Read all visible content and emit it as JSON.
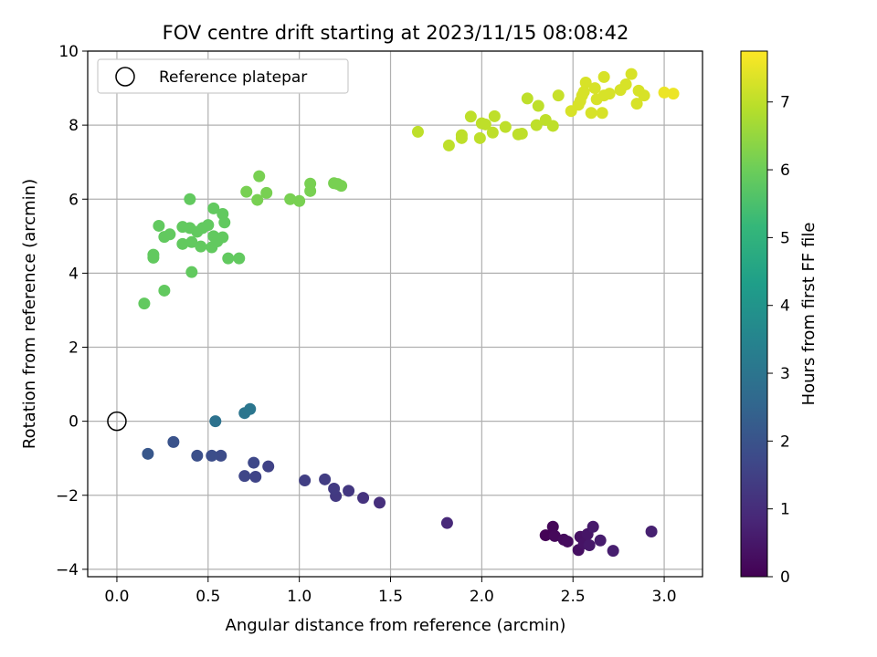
{
  "chart_data": {
    "type": "scatter",
    "title": "FOV centre drift starting at 2023/11/15 08:08:42",
    "xlabel": "Angular distance from reference (arcmin)",
    "ylabel": "Rotation from reference (arcmin)",
    "xlim": [
      -0.16,
      3.21
    ],
    "ylim": [
      -4.2,
      10
    ],
    "xticks": [
      "0.0",
      "0.5",
      "1.0",
      "1.5",
      "2.0",
      "2.5",
      "3.0"
    ],
    "xtick_values": [
      0,
      0.5,
      1,
      1.5,
      2,
      2.5,
      3
    ],
    "yticks": [
      "−4",
      "−2",
      "0",
      "2",
      "4",
      "6",
      "8",
      "10"
    ],
    "ytick_values": [
      -4,
      -2,
      0,
      2,
      4,
      6,
      8,
      10
    ],
    "grid": true,
    "legend": {
      "placement": "top-left",
      "label": "Reference platepar"
    },
    "reference_point": {
      "x": 0,
      "y": 0
    },
    "colorbar": {
      "label": "Hours from first FF file",
      "range": [
        0,
        7.75
      ],
      "ticks": [
        "0",
        "1",
        "2",
        "3",
        "4",
        "5",
        "6",
        "7"
      ],
      "tick_values": [
        0,
        1,
        2,
        3,
        4,
        5,
        6,
        7
      ],
      "colormap": "viridis",
      "colors": [
        "#440154",
        "#482878",
        "#3e4989",
        "#31688e",
        "#26828e",
        "#1f9e89",
        "#35b779",
        "#6ece58",
        "#b5de2b",
        "#fde725"
      ]
    },
    "points": [
      {
        "x": 2.35,
        "y": -3.08,
        "t": 0.05
      },
      {
        "x": 2.39,
        "y": -2.85,
        "t": 0.1
      },
      {
        "x": 2.4,
        "y": -3.1,
        "t": 0.15
      },
      {
        "x": 2.45,
        "y": -3.2,
        "t": 0.2
      },
      {
        "x": 2.47,
        "y": -3.25,
        "t": 0.25
      },
      {
        "x": 2.53,
        "y": -3.48,
        "t": 0.3
      },
      {
        "x": 2.54,
        "y": -3.12,
        "t": 0.35
      },
      {
        "x": 2.56,
        "y": -3.3,
        "t": 0.4
      },
      {
        "x": 2.58,
        "y": -3.05,
        "t": 0.45
      },
      {
        "x": 2.59,
        "y": -3.35,
        "t": 0.5
      },
      {
        "x": 2.61,
        "y": -2.85,
        "t": 0.55
      },
      {
        "x": 2.65,
        "y": -3.22,
        "t": 0.6
      },
      {
        "x": 2.72,
        "y": -3.5,
        "t": 0.65
      },
      {
        "x": 2.93,
        "y": -2.98,
        "t": 0.7
      },
      {
        "x": 1.81,
        "y": -2.75,
        "t": 0.9
      },
      {
        "x": 1.44,
        "y": -2.2,
        "t": 1.05
      },
      {
        "x": 1.35,
        "y": -2.07,
        "t": 1.15
      },
      {
        "x": 1.27,
        "y": -1.88,
        "t": 1.25
      },
      {
        "x": 1.2,
        "y": -2.02,
        "t": 1.3
      },
      {
        "x": 1.19,
        "y": -1.82,
        "t": 1.35
      },
      {
        "x": 1.14,
        "y": -1.57,
        "t": 1.4
      },
      {
        "x": 1.03,
        "y": -1.6,
        "t": 1.45
      },
      {
        "x": 0.83,
        "y": -1.22,
        "t": 1.55
      },
      {
        "x": 0.76,
        "y": -1.5,
        "t": 1.6
      },
      {
        "x": 0.7,
        "y": -1.48,
        "t": 1.65
      },
      {
        "x": 0.75,
        "y": -1.12,
        "t": 1.7
      },
      {
        "x": 0.57,
        "y": -0.93,
        "t": 1.8
      },
      {
        "x": 0.52,
        "y": -0.93,
        "t": 1.85
      },
      {
        "x": 0.44,
        "y": -0.93,
        "t": 1.9
      },
      {
        "x": 0.31,
        "y": -0.56,
        "t": 2.0
      },
      {
        "x": 0.17,
        "y": -0.88,
        "t": 2.1
      },
      {
        "x": 0.54,
        "y": 0.0,
        "t": 2.9
      },
      {
        "x": 0.7,
        "y": 0.22,
        "t": 3.0
      },
      {
        "x": 0.73,
        "y": 0.33,
        "t": 3.05
      },
      {
        "x": 0.15,
        "y": 3.18,
        "t": 5.85
      },
      {
        "x": 0.26,
        "y": 3.53,
        "t": 5.85
      },
      {
        "x": 0.41,
        "y": 4.03,
        "t": 5.85
      },
      {
        "x": 0.2,
        "y": 4.42,
        "t": 5.85
      },
      {
        "x": 0.2,
        "y": 4.5,
        "t": 5.85
      },
      {
        "x": 0.61,
        "y": 4.4,
        "t": 5.85
      },
      {
        "x": 0.67,
        "y": 4.4,
        "t": 5.85
      },
      {
        "x": 0.26,
        "y": 4.98,
        "t": 5.85
      },
      {
        "x": 0.29,
        "y": 5.05,
        "t": 5.85
      },
      {
        "x": 0.23,
        "y": 5.28,
        "t": 5.85
      },
      {
        "x": 0.36,
        "y": 4.79,
        "t": 5.85
      },
      {
        "x": 0.41,
        "y": 4.84,
        "t": 5.85
      },
      {
        "x": 0.46,
        "y": 4.72,
        "t": 5.85
      },
      {
        "x": 0.52,
        "y": 4.7,
        "t": 5.85
      },
      {
        "x": 0.36,
        "y": 5.25,
        "t": 5.85
      },
      {
        "x": 0.4,
        "y": 5.22,
        "t": 5.85
      },
      {
        "x": 0.44,
        "y": 5.12,
        "t": 5.85
      },
      {
        "x": 0.47,
        "y": 5.22,
        "t": 5.85
      },
      {
        "x": 0.5,
        "y": 5.3,
        "t": 5.85
      },
      {
        "x": 0.53,
        "y": 5.0,
        "t": 5.85
      },
      {
        "x": 0.55,
        "y": 4.86,
        "t": 5.85
      },
      {
        "x": 0.58,
        "y": 4.97,
        "t": 5.85
      },
      {
        "x": 0.53,
        "y": 5.75,
        "t": 5.85
      },
      {
        "x": 0.58,
        "y": 5.6,
        "t": 5.85
      },
      {
        "x": 0.59,
        "y": 5.37,
        "t": 5.85
      },
      {
        "x": 0.4,
        "y": 6.0,
        "t": 5.85
      },
      {
        "x": 0.71,
        "y": 6.2,
        "t": 6.15
      },
      {
        "x": 0.77,
        "y": 5.98,
        "t": 6.15
      },
      {
        "x": 0.78,
        "y": 6.62,
        "t": 6.15
      },
      {
        "x": 0.82,
        "y": 6.17,
        "t": 6.15
      },
      {
        "x": 0.95,
        "y": 6.0,
        "t": 6.15
      },
      {
        "x": 1.0,
        "y": 5.95,
        "t": 6.15
      },
      {
        "x": 1.06,
        "y": 6.22,
        "t": 6.15
      },
      {
        "x": 1.06,
        "y": 6.42,
        "t": 6.15
      },
      {
        "x": 1.19,
        "y": 6.43,
        "t": 6.15
      },
      {
        "x": 1.21,
        "y": 6.41,
        "t": 6.15
      },
      {
        "x": 1.23,
        "y": 6.36,
        "t": 6.15
      },
      {
        "x": 1.65,
        "y": 7.82,
        "t": 7.0
      },
      {
        "x": 1.82,
        "y": 7.45,
        "t": 7.0
      },
      {
        "x": 1.89,
        "y": 7.65,
        "t": 7.0
      },
      {
        "x": 1.89,
        "y": 7.73,
        "t": 7.0
      },
      {
        "x": 1.94,
        "y": 8.23,
        "t": 7.0
      },
      {
        "x": 1.99,
        "y": 7.65,
        "t": 7.0
      },
      {
        "x": 2.0,
        "y": 8.05,
        "t": 7.0
      },
      {
        "x": 2.02,
        "y": 8.02,
        "t": 7.0
      },
      {
        "x": 2.07,
        "y": 8.24,
        "t": 7.0
      },
      {
        "x": 2.06,
        "y": 7.8,
        "t": 7.0
      },
      {
        "x": 2.13,
        "y": 7.95,
        "t": 7.0
      },
      {
        "x": 2.2,
        "y": 7.75,
        "t": 7.0
      },
      {
        "x": 2.22,
        "y": 7.77,
        "t": 7.0
      },
      {
        "x": 2.25,
        "y": 8.72,
        "t": 7.0
      },
      {
        "x": 2.3,
        "y": 8.0,
        "t": 7.0
      },
      {
        "x": 2.31,
        "y": 8.52,
        "t": 7.0
      },
      {
        "x": 2.35,
        "y": 8.14,
        "t": 7.0
      },
      {
        "x": 2.39,
        "y": 7.98,
        "t": 7.0
      },
      {
        "x": 2.42,
        "y": 8.8,
        "t": 7.1
      },
      {
        "x": 2.49,
        "y": 8.38,
        "t": 7.3
      },
      {
        "x": 2.53,
        "y": 8.55,
        "t": 7.3
      },
      {
        "x": 2.54,
        "y": 8.65,
        "t": 7.3
      },
      {
        "x": 2.55,
        "y": 8.8,
        "t": 7.3
      },
      {
        "x": 2.56,
        "y": 8.9,
        "t": 7.3
      },
      {
        "x": 2.57,
        "y": 9.15,
        "t": 7.3
      },
      {
        "x": 2.6,
        "y": 8.33,
        "t": 7.3
      },
      {
        "x": 2.62,
        "y": 9.0,
        "t": 7.3
      },
      {
        "x": 2.63,
        "y": 8.7,
        "t": 7.3
      },
      {
        "x": 2.66,
        "y": 8.33,
        "t": 7.3
      },
      {
        "x": 2.67,
        "y": 8.8,
        "t": 7.3
      },
      {
        "x": 2.67,
        "y": 9.3,
        "t": 7.3
      },
      {
        "x": 2.7,
        "y": 8.85,
        "t": 7.3
      },
      {
        "x": 2.76,
        "y": 8.95,
        "t": 7.3
      },
      {
        "x": 2.79,
        "y": 9.1,
        "t": 7.3
      },
      {
        "x": 2.82,
        "y": 9.38,
        "t": 7.3
      },
      {
        "x": 2.85,
        "y": 8.58,
        "t": 7.3
      },
      {
        "x": 2.86,
        "y": 8.93,
        "t": 7.3
      },
      {
        "x": 2.89,
        "y": 8.8,
        "t": 7.3
      },
      {
        "x": 3.0,
        "y": 8.88,
        "t": 7.55
      },
      {
        "x": 3.05,
        "y": 8.85,
        "t": 7.55
      }
    ]
  }
}
